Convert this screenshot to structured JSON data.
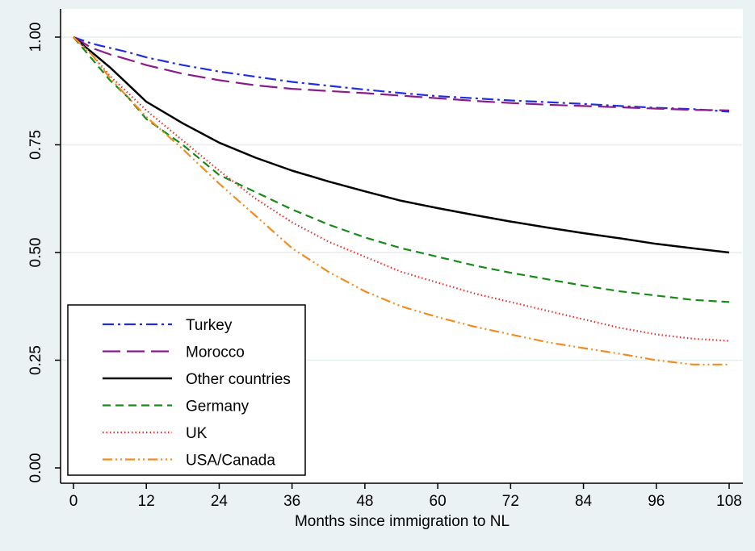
{
  "chart_data": {
    "type": "line",
    "title": "",
    "xlabel": "Months since immigration to NL",
    "ylabel": "",
    "xlim": [
      0,
      108
    ],
    "ylim": [
      0,
      1
    ],
    "x_ticks": [
      0,
      12,
      24,
      36,
      48,
      60,
      72,
      84,
      96,
      108
    ],
    "x_tick_labels": [
      "0",
      "12",
      "24",
      "36",
      "48",
      "60",
      "72",
      "84",
      "96",
      "108"
    ],
    "y_ticks": [
      0,
      0.25,
      0.5,
      0.75,
      1
    ],
    "y_tick_labels": [
      "0.00",
      "0.25",
      "0.50",
      "0.75",
      "1.00"
    ],
    "grid": "horizontal",
    "legend_position": "bottom-left",
    "x": [
      0,
      3,
      6,
      9,
      12,
      18,
      24,
      30,
      36,
      42,
      48,
      54,
      60,
      66,
      72,
      78,
      84,
      90,
      96,
      102,
      108
    ],
    "series": [
      {
        "name": "Turkey",
        "color": "#1f2ee0",
        "dash": "dash-dot",
        "values": [
          1.0,
          0.985,
          0.975,
          0.965,
          0.953,
          0.935,
          0.92,
          0.908,
          0.896,
          0.887,
          0.878,
          0.87,
          0.863,
          0.858,
          0.853,
          0.849,
          0.845,
          0.84,
          0.836,
          0.833,
          0.827
        ]
      },
      {
        "name": "Morocco",
        "color": "#8b1a8b",
        "dash": "long-dash",
        "values": [
          1.0,
          0.975,
          0.96,
          0.948,
          0.935,
          0.915,
          0.9,
          0.888,
          0.88,
          0.875,
          0.87,
          0.864,
          0.858,
          0.852,
          0.847,
          0.843,
          0.84,
          0.837,
          0.834,
          0.831,
          0.83
        ]
      },
      {
        "name": "Other countries",
        "color": "#000000",
        "dash": "solid",
        "values": [
          1.0,
          0.965,
          0.93,
          0.89,
          0.85,
          0.8,
          0.755,
          0.72,
          0.69,
          0.665,
          0.642,
          0.62,
          0.603,
          0.587,
          0.572,
          0.558,
          0.545,
          0.533,
          0.52,
          0.51,
          0.5
        ]
      },
      {
        "name": "Germany",
        "color": "#178a17",
        "dash": "dash",
        "values": [
          1.0,
          0.95,
          0.9,
          0.86,
          0.81,
          0.75,
          0.68,
          0.64,
          0.6,
          0.565,
          0.535,
          0.51,
          0.49,
          0.47,
          0.453,
          0.438,
          0.423,
          0.41,
          0.4,
          0.39,
          0.385
        ]
      },
      {
        "name": "UK",
        "color": "#e8322e",
        "dash": "dotted",
        "values": [
          1.0,
          0.96,
          0.91,
          0.87,
          0.83,
          0.76,
          0.69,
          0.625,
          0.57,
          0.525,
          0.49,
          0.455,
          0.43,
          0.405,
          0.385,
          0.365,
          0.345,
          0.325,
          0.31,
          0.3,
          0.295
        ]
      },
      {
        "name": "USA/Canada",
        "color": "#f28c1e",
        "dash": "dash-dot-dot",
        "values": [
          1.0,
          0.96,
          0.905,
          0.86,
          0.815,
          0.74,
          0.66,
          0.585,
          0.51,
          0.455,
          0.41,
          0.375,
          0.35,
          0.328,
          0.31,
          0.292,
          0.278,
          0.265,
          0.25,
          0.24,
          0.24
        ]
      }
    ]
  }
}
